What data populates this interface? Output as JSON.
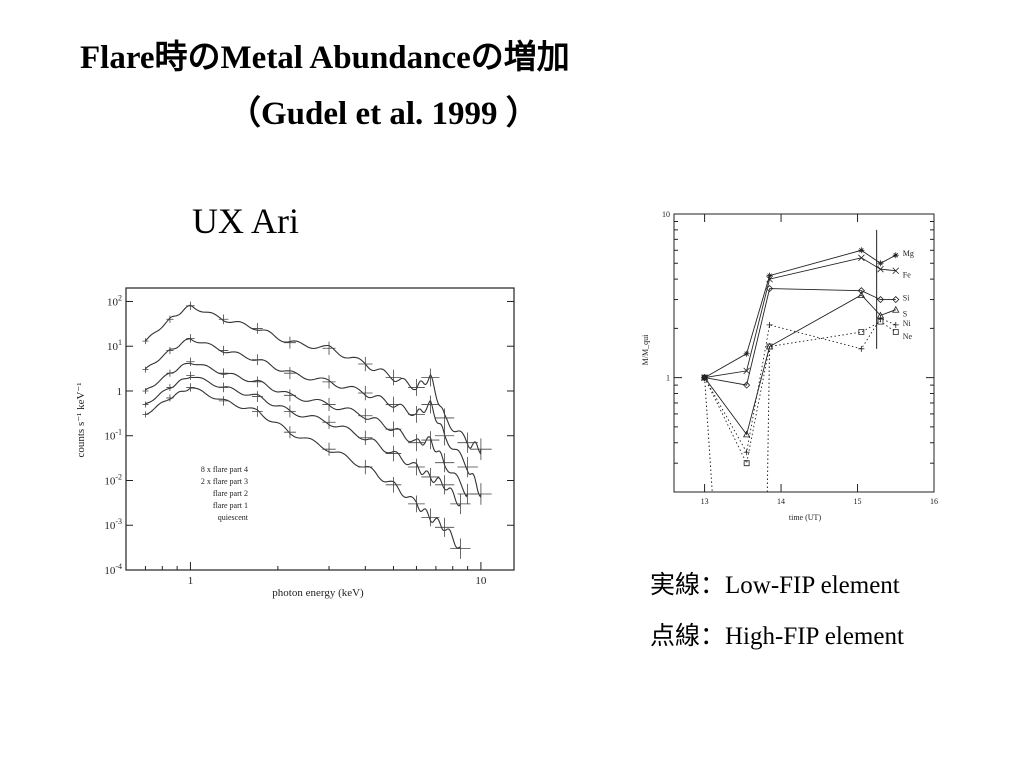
{
  "title": "Flare時のMetal Abundanceの増加",
  "citation": "（Gudel et al. 1999 ）",
  "star_name": "UX Ari",
  "notes": {
    "solid": "実線：Low-FIP element",
    "dotted": "点線：High-FIP element"
  },
  "chart_data": [
    {
      "type": "line",
      "xlabel": "photon energy (keV)",
      "ylabel": "counts s⁻¹ keV⁻¹",
      "xscale": "log",
      "yscale": "log",
      "xlim": [
        0.6,
        13
      ],
      "ylim": [
        0.0001,
        200
      ],
      "x_ticks": [
        1,
        10
      ],
      "y_ticks": [
        "10^2",
        "10^1",
        "1",
        "10^-1",
        "10^-2",
        "10^-3",
        "10^-4"
      ],
      "legend_placement": "lower-left",
      "series": [
        {
          "name": "8 x flare part 4",
          "x": [
            0.7,
            0.85,
            1.0,
            1.3,
            1.7,
            2.2,
            3.0,
            4.0,
            5.0,
            6.0,
            6.7,
            7.5,
            9.0,
            10.0
          ],
          "y": [
            13,
            40,
            80,
            40,
            25,
            12,
            9,
            4,
            2,
            1.2,
            2.0,
            0.25,
            0.07,
            0.05
          ]
        },
        {
          "name": "2 x flare part 3",
          "x": [
            0.7,
            0.85,
            1.0,
            1.3,
            1.7,
            2.2,
            3.0,
            4.0,
            5.0,
            6.0,
            6.7,
            7.5,
            9.0,
            10.0
          ],
          "y": [
            3,
            8,
            15,
            8,
            5,
            2.5,
            1.6,
            0.9,
            0.5,
            0.3,
            0.5,
            0.1,
            0.02,
            0.005
          ]
        },
        {
          "name": "flare part 2",
          "x": [
            0.7,
            0.85,
            1.0,
            1.3,
            1.7,
            2.2,
            3.0,
            4.0,
            5.0,
            6.0,
            6.7,
            7.5,
            9.0
          ],
          "y": [
            1.0,
            2.5,
            4.5,
            2.5,
            1.6,
            0.8,
            0.5,
            0.28,
            0.14,
            0.07,
            0.08,
            0.025,
            0.005
          ]
        },
        {
          "name": "flare part 1",
          "x": [
            0.7,
            0.85,
            1.0,
            1.3,
            1.7,
            2.2,
            3.0,
            4.0,
            5.0,
            6.0,
            6.7,
            7.5,
            8.5
          ],
          "y": [
            0.5,
            1.2,
            2.2,
            1.2,
            0.75,
            0.35,
            0.2,
            0.09,
            0.04,
            0.02,
            0.012,
            0.008,
            0.003
          ]
        },
        {
          "name": "quiescent",
          "x": [
            0.7,
            0.85,
            1.0,
            1.3,
            1.7,
            2.2,
            3.0,
            4.0,
            5.0,
            6.0,
            6.7,
            7.5,
            8.5
          ],
          "y": [
            0.3,
            0.7,
            1.2,
            0.6,
            0.35,
            0.12,
            0.05,
            0.02,
            0.008,
            0.003,
            0.0015,
            0.0009,
            0.0003
          ]
        }
      ]
    },
    {
      "type": "line",
      "xlabel": "time (UT)",
      "ylabel": "M/M_qui",
      "yscale": "log",
      "xlim": [
        12.6,
        16
      ],
      "ylim": [
        0.2,
        10
      ],
      "x_ticks": [
        13,
        14,
        15,
        16
      ],
      "y_ticks": [
        1,
        10
      ],
      "series": [
        {
          "name": "Mg",
          "style": "solid",
          "marker": "asterisk",
          "x": [
            13,
            13.55,
            13.85,
            15.05,
            15.3,
            15.5
          ],
          "y": [
            1,
            1.4,
            4.2,
            6,
            5,
            5.6
          ]
        },
        {
          "name": "Fe",
          "style": "solid",
          "marker": "x",
          "x": [
            13,
            13.55,
            13.85,
            15.05,
            15.3,
            15.5
          ],
          "y": [
            1,
            1.1,
            4.0,
            5.4,
            4.6,
            4.5
          ]
        },
        {
          "name": "Si",
          "style": "solid",
          "marker": "diamond",
          "x": [
            13,
            13.55,
            13.85,
            15.05,
            15.3,
            15.5
          ],
          "y": [
            1,
            0.9,
            3.5,
            3.4,
            3.0,
            3.0
          ]
        },
        {
          "name": "S",
          "style": "solid",
          "marker": "triangle",
          "x": [
            13,
            13.55,
            13.85,
            15.05,
            15.3,
            15.5
          ],
          "y": [
            1,
            0.45,
            1.55,
            3.2,
            2.4,
            2.6
          ]
        },
        {
          "name": "Ni",
          "style": "dotted",
          "marker": "plus",
          "x": [
            13,
            13.55,
            13.85,
            15.05,
            15.3,
            15.5
          ],
          "y": [
            1,
            0.35,
            2.1,
            1.5,
            2.3,
            2.1
          ]
        },
        {
          "name": "Ne",
          "style": "dotted",
          "marker": "square",
          "x": [
            13,
            13.55,
            13.85,
            15.05,
            15.3,
            15.5
          ],
          "y": [
            1,
            0.3,
            1.55,
            1.9,
            2.2,
            1.9
          ]
        }
      ]
    }
  ]
}
